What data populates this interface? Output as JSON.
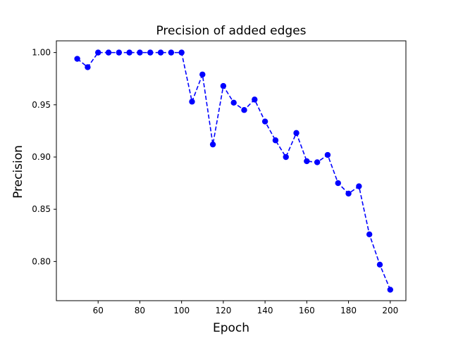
{
  "chart_data": {
    "type": "line",
    "title": "Precision of added edges",
    "xlabel": "Epoch",
    "ylabel": "Precision",
    "xlim": [
      40,
      207.5
    ],
    "ylim": [
      0.7625,
      1.0112
    ],
    "xticks": [
      60,
      80,
      100,
      120,
      140,
      160,
      180,
      200
    ],
    "yticks": [
      0.8,
      0.85,
      0.9,
      0.95,
      1.0
    ],
    "yticks_labels": [
      "0.80",
      "0.85",
      "0.90",
      "0.95",
      "1.00"
    ],
    "grid": false,
    "series": [
      {
        "color": "#0000ff",
        "line_style": "dashed",
        "marker": "circle",
        "x": [
          50,
          55,
          60,
          65,
          70,
          75,
          80,
          85,
          90,
          95,
          100,
          105,
          110,
          115,
          120,
          125,
          130,
          135,
          140,
          145,
          150,
          155,
          160,
          165,
          170,
          175,
          180,
          185,
          190,
          195,
          200
        ],
        "y": [
          0.994,
          0.986,
          1.0,
          1.0,
          1.0,
          1.0,
          1.0,
          1.0,
          1.0,
          1.0,
          1.0,
          0.953,
          0.979,
          0.912,
          0.968,
          0.952,
          0.945,
          0.955,
          0.934,
          0.916,
          0.9,
          0.923,
          0.896,
          0.895,
          0.902,
          0.875,
          0.865,
          0.872,
          0.826,
          0.797,
          0.773
        ]
      }
    ]
  }
}
